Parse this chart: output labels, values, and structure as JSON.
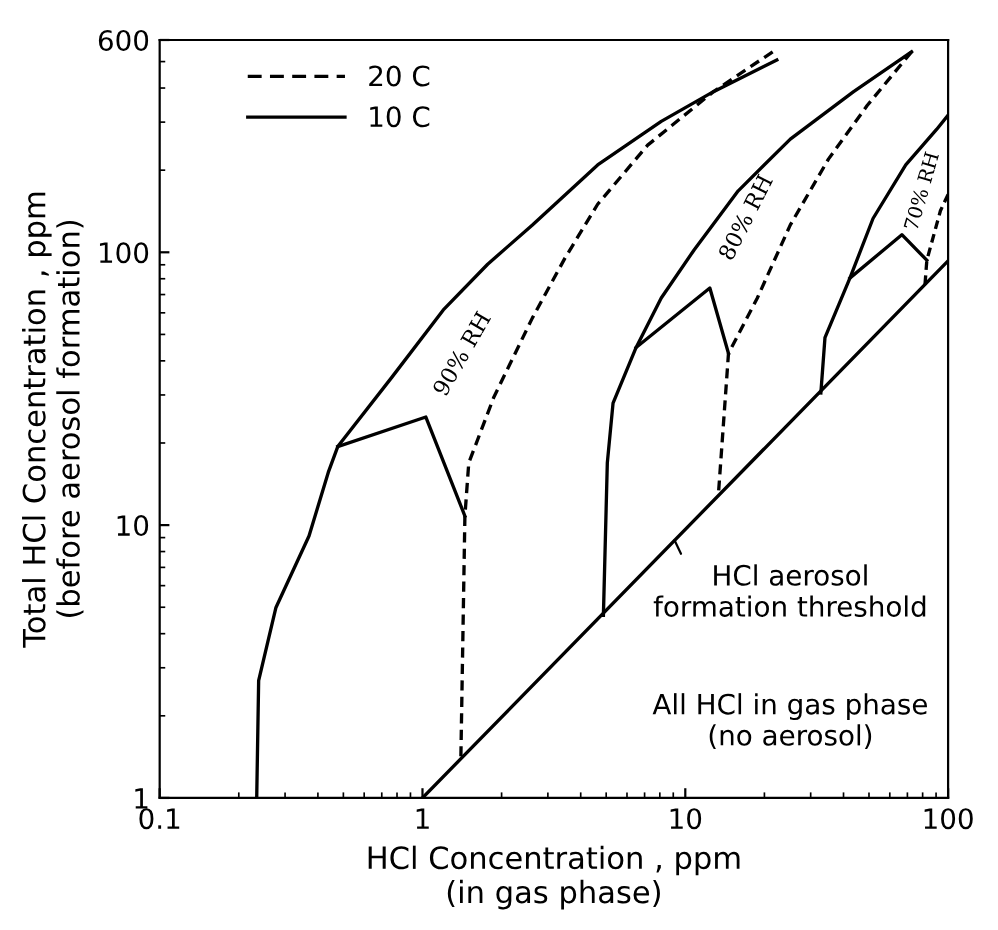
{
  "chart_data": {
    "type": "line",
    "xlabel": "HCl Concentration , ppm\n(in gas phase)",
    "ylabel": "Total HCl Concentration , ppm\n(before aerosol formation)",
    "log": "xy",
    "xlim": [
      0.1,
      100
    ],
    "xticks": [
      0.1,
      1,
      10,
      100
    ],
    "ylim": [
      1,
      600
    ],
    "yticks": [
      1,
      10,
      100,
      600
    ],
    "grid": false,
    "legend": "top left",
    "series": [
      {
        "name": "20 C",
        "color": "#000000",
        "line_style": "dashed",
        "x": [
          1.4,
          1.45,
          1.5,
          1.87,
          2.62,
          3.48,
          4.64,
          7.19,
          12.8,
          21.5
        ],
        "values": [
          1.42,
          10.8,
          16.9,
          29.5,
          57.5,
          95,
          150,
          247,
          388,
          543
        ]
      },
      {
        "name": "10 C",
        "color": "#000000",
        "line_style": "solid",
        "x": [
          0.234,
          0.238,
          0.277,
          0.37,
          0.438,
          0.476,
          0.764,
          1.2,
          1.77,
          2.62,
          4.64,
          8.1,
          12.8,
          22.3
        ],
        "values": [
          1,
          2.69,
          4.99,
          9.12,
          15.6,
          19.4,
          34.8,
          61.5,
          90.4,
          126,
          209,
          302,
          388,
          507
        ]
      },
      {
        "color": "#000000",
        "line_style": "solid",
        "x": [
          0.476,
          1.03,
          1.45
        ],
        "values": [
          19.4,
          24.9,
          10.8
        ]
      },
      {
        "color": "#000000",
        "line_style": "dashed",
        "x": [
          13.4,
          14.6,
          18.8,
          25.1,
          35.1,
          49.2,
          72.6
        ],
        "values": [
          13.4,
          42.6,
          68.0,
          126,
          220,
          345,
          543
        ]
      },
      {
        "color": "#000000",
        "line_style": "solid",
        "x": [
          4.88,
          5.05,
          5.31,
          6.5,
          8.1,
          10.8,
          15.9,
          25.1,
          43.7,
          72.6
        ],
        "values": [
          4.67,
          16.9,
          28.0,
          44.8,
          68.0,
          102,
          168,
          260,
          388,
          543
        ]
      },
      {
        "color": "#000000",
        "line_style": "solid",
        "x": [
          6.5,
          12.4,
          14.6
        ],
        "values": [
          44.8,
          74,
          42.6
        ]
      },
      {
        "color": "#000000",
        "line_style": "dashed",
        "x": [
          81.7,
          83.0,
          93.5,
          100
        ],
        "values": [
          76.5,
          93.5,
          142,
          163
        ]
      },
      {
        "color": "#000000",
        "line_style": "solid",
        "x": [
          32.8,
          34.0,
          42.3,
          51.8,
          69.0,
          90.4,
          100
        ],
        "values": [
          30.5,
          48.7,
          80.4,
          133,
          209,
          282,
          318
        ]
      },
      {
        "color": "#000000",
        "line_style": "solid",
        "x": [
          42.3,
          66.7,
          83.0
        ],
        "values": [
          80.4,
          116,
          93.5
        ]
      },
      {
        "color": "#000000",
        "line_style": "solid",
        "x": [
          1,
          100
        ],
        "values": [
          1,
          93
        ]
      }
    ],
    "annotations": [
      "90% RH",
      "80% RH",
      "70% RH",
      {
        "text": "HCl aerosol\nformation threshold",
        "x": 9.1,
        "y": 8.8
      },
      "All HCl in gas phase\n(no aerosol)"
    ]
  }
}
